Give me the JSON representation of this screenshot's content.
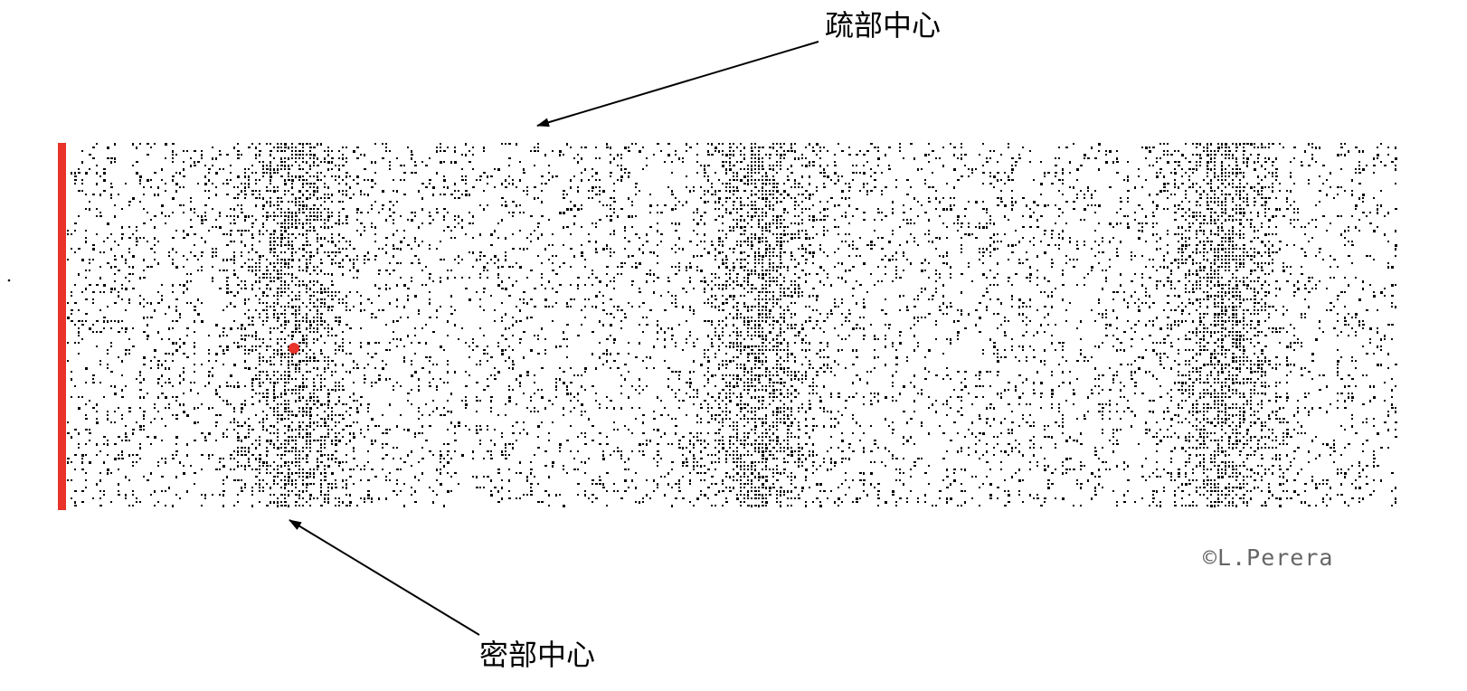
{
  "labels": {
    "rarefaction_center": "疏部中心",
    "compression_center": "密部中心"
  },
  "credit": "©L.Perera",
  "colors": {
    "background": "#ffffff",
    "particles": "#000000",
    "source_bar": "#e8322a",
    "marker_particle": "#e8322a",
    "arrow": "#000000",
    "credit": "#666666"
  },
  "wave": {
    "compressions": 3,
    "rarefactions_between": 2
  }
}
